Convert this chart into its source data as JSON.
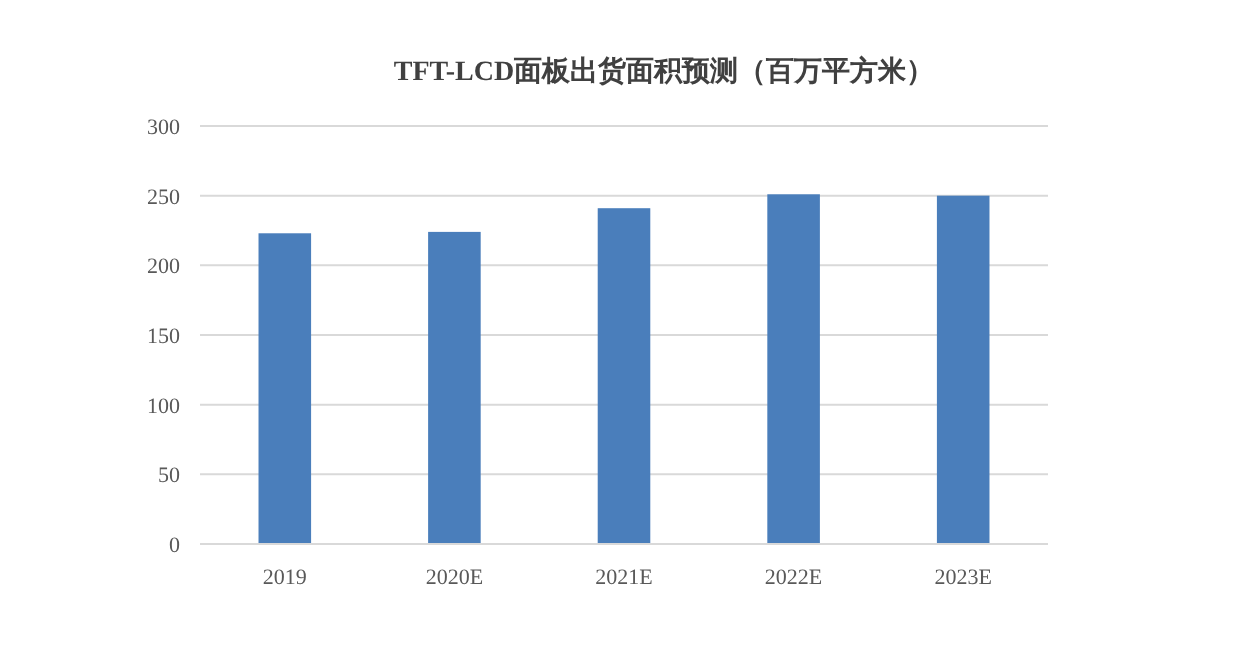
{
  "chart_data": {
    "type": "bar",
    "title": "TFT-LCD面板出货面积预测（百万平方米）",
    "categories": [
      "2019",
      "2020E",
      "2021E",
      "2022E",
      "2023E"
    ],
    "values": [
      223,
      224,
      241,
      251,
      250
    ],
    "color": "#4a7ebb",
    "ylim": [
      0,
      300
    ],
    "yticks": [
      0,
      50,
      100,
      150,
      200,
      250,
      300
    ],
    "grid": "y"
  }
}
